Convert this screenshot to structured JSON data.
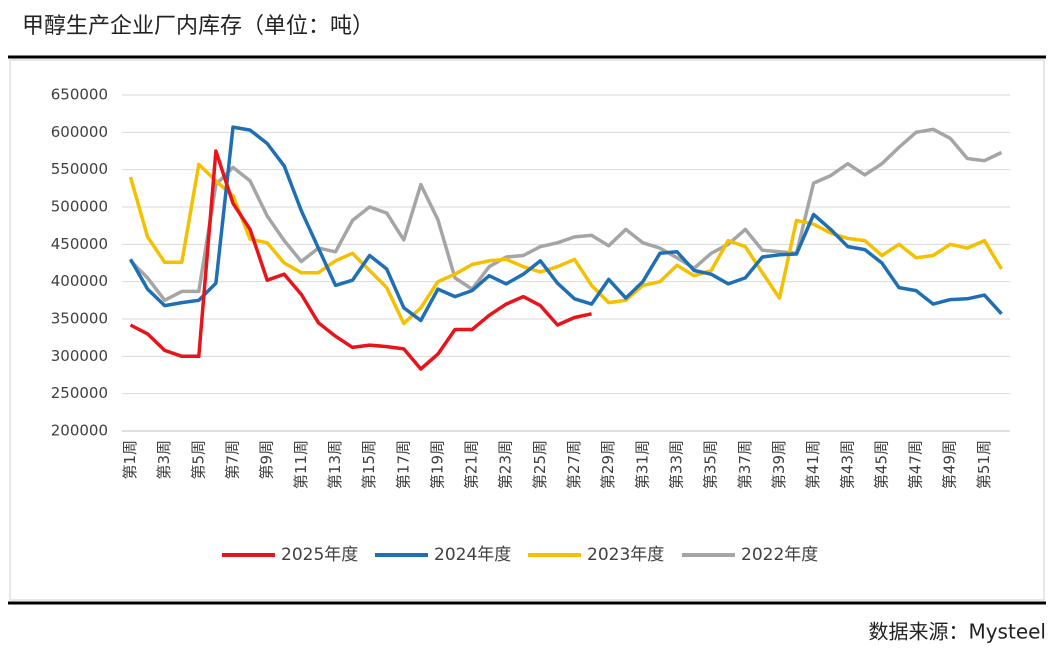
{
  "chart_data": {
    "type": "line",
    "title": "甲醇生产企业厂内库存（单位：吨）",
    "source": "数据来源：Mysteel",
    "categories": [
      "第1周",
      null,
      "第3周",
      null,
      "第5周",
      null,
      "第7周",
      null,
      "第9周",
      null,
      "第11周",
      null,
      "第13周",
      null,
      "第15周",
      null,
      "第17周",
      null,
      "第19周",
      null,
      "第21周",
      null,
      "第23周",
      null,
      "第25周",
      null,
      "第27周",
      null,
      "第29周",
      null,
      "第31周",
      null,
      "第33周",
      null,
      "第35周",
      null,
      "第37周",
      null,
      "第39周",
      null,
      "第41周",
      null,
      "第43周",
      null,
      "第45周",
      null,
      "第47周",
      null,
      "第49周",
      null,
      "第51周",
      null
    ],
    "ylim": [
      200000,
      650000
    ],
    "yticks": [
      200000,
      250000,
      300000,
      350000,
      400000,
      450000,
      500000,
      550000,
      600000,
      650000
    ],
    "grid": true,
    "legend": "bottom",
    "series": [
      {
        "name": "2025年度",
        "color": "#e8141c",
        "values": [
          342000,
          330000,
          308000,
          300000,
          300000,
          575000,
          505000,
          470000,
          402000,
          410000,
          383000,
          345000,
          327000,
          312000,
          315000,
          313000,
          310000,
          283000,
          303000,
          336000,
          336000,
          355000,
          370000,
          380000,
          368000,
          342000,
          352000,
          357000,
          null,
          null,
          null,
          null,
          null,
          null,
          null,
          null,
          null,
          null,
          null,
          null,
          null,
          null,
          null,
          null,
          null,
          null,
          null,
          null,
          null,
          null,
          null,
          null
        ]
      },
      {
        "name": "2024年度",
        "color": "#1f6fb5",
        "values": [
          430000,
          390000,
          368000,
          372000,
          375000,
          398000,
          607000,
          603000,
          585000,
          555000,
          495000,
          445000,
          395000,
          402000,
          435000,
          417000,
          365000,
          348000,
          390000,
          380000,
          388000,
          408000,
          397000,
          410000,
          428000,
          398000,
          377000,
          370000,
          403000,
          378000,
          400000,
          438000,
          440000,
          415000,
          410000,
          397000,
          405000,
          433000,
          436000,
          437000,
          490000,
          470000,
          447000,
          443000,
          425000,
          392000,
          388000,
          370000,
          376000,
          377000,
          382000,
          357000
        ]
      },
      {
        "name": "2023年度",
        "color": "#f5c000",
        "values": [
          540000,
          460000,
          426000,
          426000,
          557000,
          535000,
          515000,
          457000,
          452000,
          425000,
          412000,
          412000,
          428000,
          438000,
          415000,
          392000,
          344000,
          365000,
          400000,
          410000,
          423000,
          428000,
          430000,
          420000,
          413000,
          420000,
          430000,
          395000,
          372000,
          375000,
          395000,
          400000,
          422000,
          408000,
          415000,
          455000,
          447000,
          412000,
          378000,
          482000,
          477000,
          465000,
          458000,
          455000,
          435000,
          450000,
          432000,
          435000,
          450000,
          445000,
          455000,
          417000
        ]
      },
      {
        "name": "2022年度",
        "color": "#a5a5a5",
        "values": [
          428000,
          405000,
          375000,
          387000,
          387000,
          530000,
          553000,
          535000,
          488000,
          455000,
          427000,
          445000,
          440000,
          482000,
          500000,
          492000,
          456000,
          530000,
          483000,
          405000,
          390000,
          420000,
          433000,
          435000,
          447000,
          452000,
          460000,
          462000,
          448000,
          470000,
          452000,
          445000,
          432000,
          418000,
          438000,
          450000,
          470000,
          442000,
          440000,
          438000,
          532000,
          542000,
          558000,
          543000,
          558000,
          580000,
          600000,
          604000,
          592000,
          565000,
          562000,
          573000
        ]
      }
    ]
  }
}
